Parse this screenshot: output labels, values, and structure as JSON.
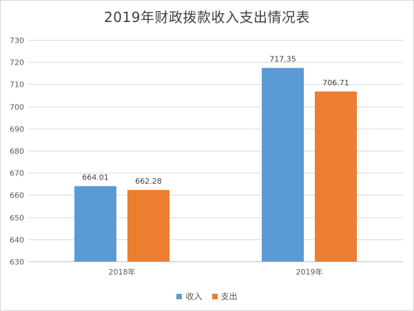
{
  "chart_data": {
    "type": "bar",
    "title": "2019年财政拨款收入支出情况表",
    "categories": [
      "2018年",
      "2019年"
    ],
    "series": [
      {
        "name": "收入",
        "values": [
          664.01,
          717.35
        ],
        "color": "#5b9bd5"
      },
      {
        "name": "支出",
        "values": [
          662.28,
          706.71
        ],
        "color": "#ed7d31"
      }
    ],
    "value_labels": [
      [
        "664.01",
        "717.35"
      ],
      [
        "662.28",
        "706.71"
      ]
    ],
    "ylim": [
      630,
      730
    ],
    "yticks": [
      630,
      640,
      650,
      660,
      670,
      680,
      690,
      700,
      710,
      720,
      730
    ],
    "grid": true,
    "legend_position": "bottom",
    "xlabel": "",
    "ylabel": ""
  }
}
